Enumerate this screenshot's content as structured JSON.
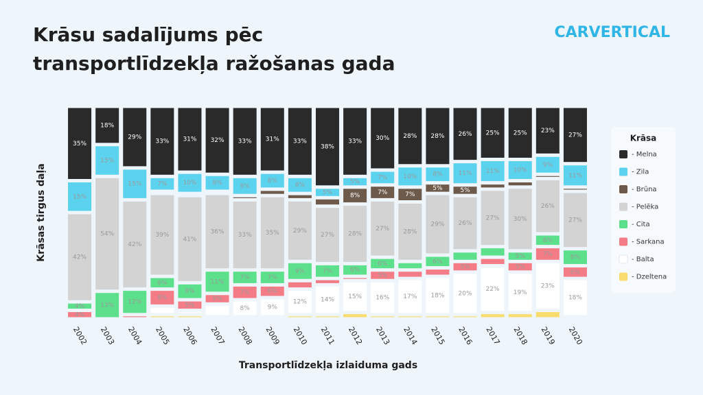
{
  "chart_data": {
    "type": "stacked-bar",
    "title": [
      "Krāsu sadalījums pēc",
      "transportlīdzekļa ražošanas gada"
    ],
    "brand": "CARVERTICAL",
    "y_label": "Krāsas tirgus daļa",
    "x_label": "Transportlīdzekļa izlaiduma gads",
    "legend_title": "Krāsa",
    "legend_position": "right",
    "ylim": [
      0,
      100
    ],
    "categories": [
      "2002",
      "2003",
      "2004",
      "2005",
      "2006",
      "2007",
      "2008",
      "2009",
      "2010",
      "2011",
      "2012",
      "2013",
      "2014",
      "2015",
      "2016",
      "2017",
      "2018",
      "2019",
      "2020"
    ],
    "series": [
      {
        "name": "- Dzeltena",
        "color": "#f9dc6e",
        "values": [
          0,
          0,
          0,
          2,
          2,
          1,
          1,
          1,
          2,
          2,
          3,
          2,
          2,
          2,
          2,
          3,
          3,
          4,
          1
        ]
      },
      {
        "name": "- Balta",
        "color": "#ffffff",
        "values": [
          0,
          0,
          0,
          4,
          2,
          6,
          8,
          9,
          12,
          14,
          15,
          16,
          17,
          18,
          20,
          22,
          19,
          23,
          18
        ],
        "value_labels": [
          null,
          null,
          null,
          null,
          null,
          null,
          "8%",
          "9%",
          "12%",
          "14%",
          "15%",
          "16%",
          "17%",
          "18%",
          "20%",
          "22%",
          "19%",
          "23%",
          "18%"
        ]
      },
      {
        "name": "- Sarkana",
        "color": "#f47c86",
        "values": [
          4,
          0,
          2,
          8,
          5,
          5,
          7,
          6,
          4,
          3,
          2,
          5,
          4,
          4,
          5,
          4,
          5,
          7,
          6
        ],
        "value_labels": [
          "4%",
          null,
          null,
          "8%",
          "5%",
          "5%",
          "7%",
          "6%",
          null,
          null,
          null,
          "5%",
          null,
          null,
          "5%",
          null,
          "5%",
          "7%",
          "6%"
        ]
      },
      {
        "name": "- Cita",
        "color": "#5ce08b",
        "values": [
          4,
          13,
          12,
          6,
          8,
          11,
          7,
          7,
          9,
          7,
          6,
          6,
          4,
          6,
          5,
          5,
          5,
          6,
          8
        ],
        "value_labels": [
          "4%",
          "13%",
          "12%",
          "6%",
          "8%",
          "11%",
          "7%",
          "7%",
          "9%",
          "7%",
          "6%",
          "6%",
          null,
          "6%",
          null,
          null,
          "5%",
          "6%",
          "8%"
        ]
      },
      {
        "name": "- Pelēka",
        "color": "#d3d3d3",
        "values": [
          42,
          54,
          42,
          39,
          41,
          36,
          33,
          35,
          29,
          27,
          28,
          27,
          28,
          29,
          26,
          27,
          30,
          26,
          27
        ],
        "value_labels": [
          "42%",
          "54%",
          "42%",
          "39%",
          "41%",
          "36%",
          "33%",
          "35%",
          "29%",
          "27%",
          "28%",
          "27%",
          "28%",
          "29%",
          "26%",
          "27%",
          "30%",
          "26%",
          "27%"
        ]
      },
      {
        "name": "- Brūna",
        "color": "#6e5a4b",
        "values": [
          0,
          0,
          0,
          1,
          1,
          1,
          2,
          3,
          3,
          4,
          8,
          7,
          7,
          5,
          5,
          3,
          3,
          2,
          2
        ],
        "value_labels": [
          null,
          null,
          null,
          null,
          null,
          null,
          null,
          null,
          null,
          null,
          "8%",
          "7%",
          "7%",
          "5%",
          "5%",
          null,
          null,
          null,
          null
        ]
      },
      {
        "name": "- Zila",
        "color": "#5bd3ef",
        "values": [
          15,
          15,
          15,
          7,
          10,
          8,
          9,
          8,
          8,
          5,
          5,
          7,
          10,
          8,
          11,
          11,
          10,
          9,
          11
        ],
        "value_labels": [
          "15%",
          "15%",
          "15%",
          "7%",
          "10%",
          "8%",
          "9%",
          "8%",
          "8%",
          "5%",
          "5%",
          "7%",
          "10%",
          "8%",
          "11%",
          "11%",
          "10%",
          "9%",
          "11%"
        ]
      },
      {
        "name": "- Melna",
        "color": "#2a2a2a",
        "values": [
          35,
          18,
          29,
          33,
          31,
          32,
          33,
          31,
          33,
          38,
          33,
          30,
          28,
          28,
          26,
          25,
          25,
          23,
          27
        ],
        "value_labels": [
          "35%",
          "18%",
          "29%",
          "33%",
          "31%",
          "32%",
          "33%",
          "31%",
          "33%",
          "38%",
          "33%",
          "30%",
          "28%",
          "28%",
          "26%",
          "25%",
          "25%",
          "23%",
          "27%"
        ]
      }
    ]
  }
}
